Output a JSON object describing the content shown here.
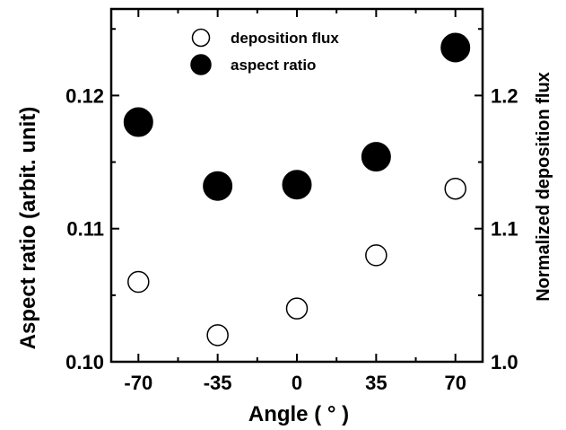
{
  "chart_data": {
    "type": "scatter",
    "x": [
      -70,
      -35,
      0,
      35,
      70
    ],
    "x_tick_labels": [
      "-70",
      "-35",
      "0",
      "35",
      "70"
    ],
    "xlabel": "Angle ( ° )",
    "xlim": [
      -82,
      82
    ],
    "series": [
      {
        "name": "deposition flux",
        "axis": "right",
        "marker": "open-circle",
        "values": [
          1.06,
          1.02,
          1.04,
          1.08,
          1.13
        ]
      },
      {
        "name": "aspect ratio",
        "axis": "left",
        "marker": "filled-circle",
        "values": [
          0.118,
          0.1132,
          0.1133,
          0.1154,
          0.1236
        ]
      }
    ],
    "ylabel": "Aspect ratio (arbit. unit)",
    "ylim": [
      0.1,
      0.1265
    ],
    "y_tick_labels": [
      "0.10",
      "0.11",
      "0.12"
    ],
    "ylabel_right": "Normalized deposition flux",
    "ylim_right": [
      1.0,
      1.265
    ],
    "y_right_tick_labels": [
      "1.0",
      "1.1",
      "1.2"
    ],
    "legend_position": "top-center",
    "grid": false,
    "colors": {
      "filled_marker": "#000000",
      "open_marker_fill": "#ffffff",
      "axis": "#000000"
    }
  }
}
